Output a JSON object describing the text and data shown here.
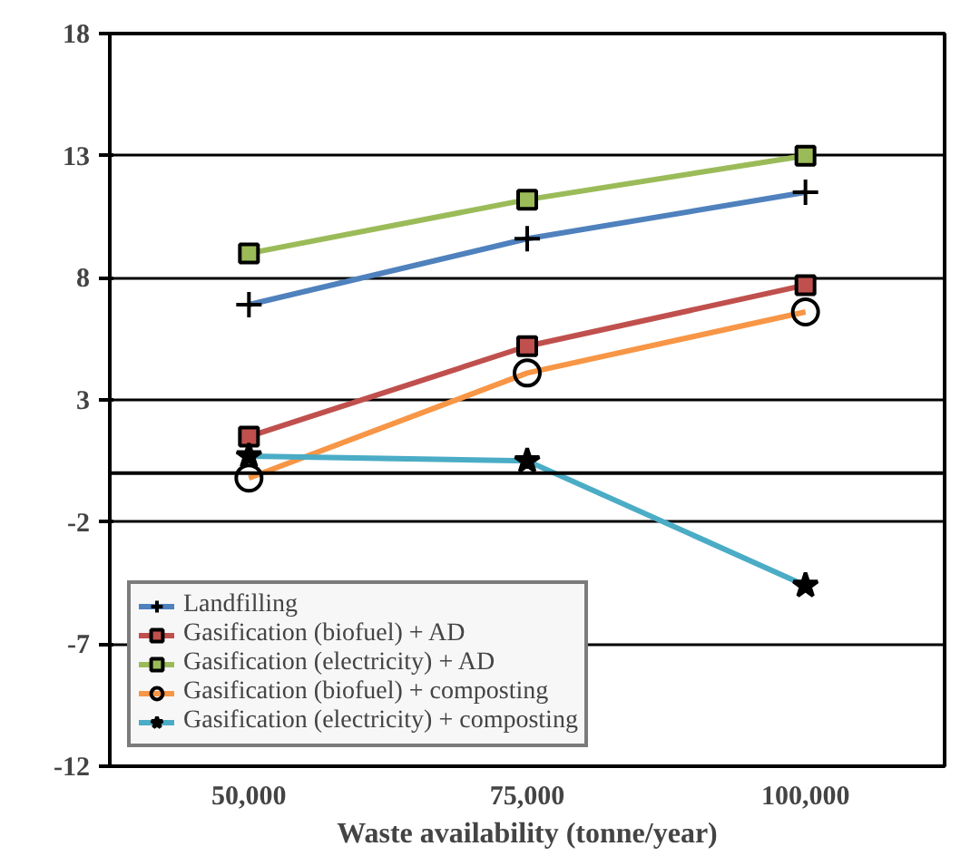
{
  "chart_data": {
    "type": "line",
    "xlabel": "Waste availability (tonne/year)",
    "categories": [
      "50,000",
      "75,000",
      "100,000"
    ],
    "ylim": [
      -12,
      18
    ],
    "yticks": [
      -12,
      -7,
      -2,
      3,
      8,
      13,
      18
    ],
    "grid": "y",
    "legend": "bottom left",
    "ref_lines": [
      {
        "axis": "y",
        "value": 0,
        "color": "#000000"
      }
    ],
    "series": [
      {
        "name": "Landfilling",
        "color": "#4f81bd",
        "marker": "cross",
        "values": [
          6.9,
          9.6,
          11.5
        ]
      },
      {
        "name": "Gasification (biofuel) + AD",
        "color": "#c0504d",
        "marker": "square",
        "values": [
          1.5,
          5.2,
          7.7
        ]
      },
      {
        "name": "Gasification (electricity) + AD",
        "color": "#9bbb59",
        "marker": "square",
        "values": [
          9.0,
          11.2,
          13.0
        ]
      },
      {
        "name": "Gasification (biofuel) + composting",
        "color": "#f79646",
        "marker": "circle",
        "values": [
          -0.2,
          4.1,
          6.6
        ]
      },
      {
        "name": "Gasification (electricity) + composting",
        "color": "#4bacc6",
        "marker": "star",
        "values": [
          0.7,
          0.5,
          -4.6
        ]
      }
    ]
  }
}
